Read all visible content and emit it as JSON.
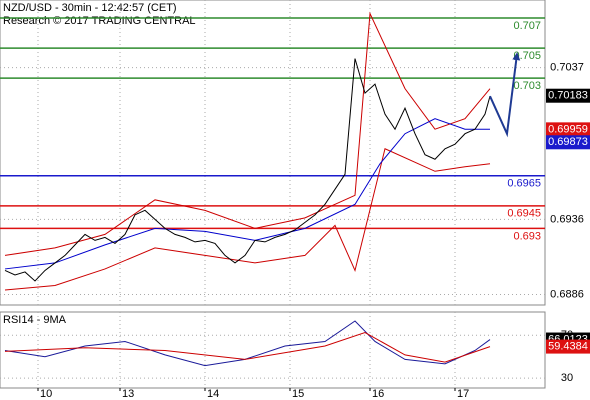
{
  "chart_data": [
    {
      "type": "line",
      "title": "NZD/USD - 30min - 12:42:57 (CET)",
      "subtitle": "Research © 2017 TRADING CENTRAL",
      "xlim": [
        -0.5,
        54
      ],
      "xticks": [
        {
          "value": 3.3,
          "label": "10"
        },
        {
          "value": 11.5,
          "label": "13"
        },
        {
          "value": 20,
          "label": "14"
        },
        {
          "value": 28.5,
          "label": "15"
        },
        {
          "value": 36.5,
          "label": "16"
        },
        {
          "value": 45,
          "label": "17"
        }
      ],
      "ylim": [
        0.6879,
        0.7082
      ],
      "yticks": [
        0.7037,
        0.6936,
        0.6886
      ],
      "grid": true,
      "series": [
        {
          "color": "#cc0000",
          "x": [
            0,
            5,
            10,
            15,
            20,
            25,
            30,
            35,
            36.5,
            40,
            43,
            46,
            48.5
          ],
          "values": [
            0.6912,
            0.6917,
            0.6926,
            0.6949,
            0.6942,
            0.693,
            0.6937,
            0.6952,
            0.7073,
            0.7023,
            0.6996,
            0.7003,
            0.7023
          ]
        },
        {
          "color": "#cc0000",
          "x": [
            0,
            5,
            10,
            15,
            20,
            25,
            30,
            33,
            35,
            38,
            43,
            46,
            48.5
          ],
          "values": [
            0.6889,
            0.6892,
            0.6903,
            0.6917,
            0.6912,
            0.6907,
            0.6912,
            0.6932,
            0.6902,
            0.6983,
            0.6968,
            0.6971,
            0.6973
          ]
        },
        {
          "color": "#0000cc",
          "x": [
            0,
            5,
            10,
            15,
            20,
            25,
            30,
            35,
            37.5,
            40,
            43,
            46,
            48.5
          ],
          "values": [
            0.6903,
            0.6907,
            0.6919,
            0.693,
            0.6928,
            0.6922,
            0.693,
            0.6946,
            0.6973,
            0.6993,
            0.7003,
            0.6996,
            0.6996
          ]
        },
        {
          "color": "#000000",
          "x": [
            0,
            1,
            2,
            3,
            4,
            5,
            6,
            7,
            8,
            9,
            10,
            11,
            12,
            13,
            14,
            15,
            16,
            17,
            18,
            19,
            20,
            21,
            22,
            23,
            24,
            25,
            26,
            27,
            28,
            29,
            30,
            31,
            32,
            33,
            34,
            35,
            36,
            37,
            38,
            39,
            40,
            41,
            42,
            43,
            44,
            45,
            46,
            47,
            48,
            48.5
          ],
          "values": [
            0.6902,
            0.6899,
            0.6901,
            0.6895,
            0.6902,
            0.6907,
            0.6912,
            0.6919,
            0.6926,
            0.6922,
            0.6924,
            0.692,
            0.6926,
            0.6939,
            0.6942,
            0.6936,
            0.693,
            0.6926,
            0.6924,
            0.6921,
            0.6922,
            0.692,
            0.6912,
            0.6907,
            0.6912,
            0.6922,
            0.6921,
            0.6924,
            0.6926,
            0.6929,
            0.6934,
            0.6939,
            0.6946,
            0.6956,
            0.6966,
            0.7043,
            0.702,
            0.7026,
            0.7006,
            0.6996,
            0.701,
            0.6993,
            0.6979,
            0.6976,
            0.6983,
            0.6986,
            0.6993,
            0.6996,
            0.7006,
            0.7018
          ]
        },
        {
          "color": "#1f3a93",
          "arrow": true,
          "x": [
            48.5,
            50.2,
            51.2
          ],
          "values": [
            0.7018,
            0.6993,
            0.7046
          ]
        }
      ],
      "levels": [
        {
          "value": 0.707,
          "color": "#2e8b2e"
        },
        {
          "value": 0.705,
          "color": "#2e8b2e"
        },
        {
          "value": 0.703,
          "color": "#2e8b2e"
        },
        {
          "value": 0.6965,
          "color": "#1a1acc"
        },
        {
          "value": 0.6945,
          "color": "#dd1111"
        },
        {
          "value": 0.693,
          "color": "#dd1111"
        }
      ],
      "tags": [
        {
          "value": 0.70183,
          "color": "#000000"
        },
        {
          "value": 0.69959,
          "color": "#dd1111"
        },
        {
          "value": 0.69873,
          "color": "#1a1acc"
        }
      ]
    },
    {
      "type": "line",
      "title": "RSI14 - 9MA",
      "ylim": [
        20.8,
        91.7
      ],
      "yticks": [
        70,
        30
      ],
      "series": [
        {
          "color": "#1a1a99",
          "x": [
            0,
            4,
            8,
            12,
            16,
            20,
            24,
            28,
            32,
            35,
            37,
            40,
            44,
            47,
            48.5
          ],
          "values": [
            55.8,
            50,
            60,
            64.2,
            51.7,
            41.7,
            47.5,
            60,
            64.2,
            83.3,
            64.2,
            47.5,
            43.3,
            55.8,
            66
          ]
        },
        {
          "color": "#cc0000",
          "x": [
            0,
            8,
            16,
            24,
            32,
            36,
            40,
            44,
            48.5
          ],
          "values": [
            55,
            58.3,
            55.8,
            47.5,
            60,
            72.5,
            51.7,
            45,
            59.4
          ]
        }
      ],
      "tags": [
        {
          "value": 66.0123,
          "color": "#000000"
        },
        {
          "value": 59.4384,
          "color": "#dd1111"
        }
      ]
    }
  ]
}
